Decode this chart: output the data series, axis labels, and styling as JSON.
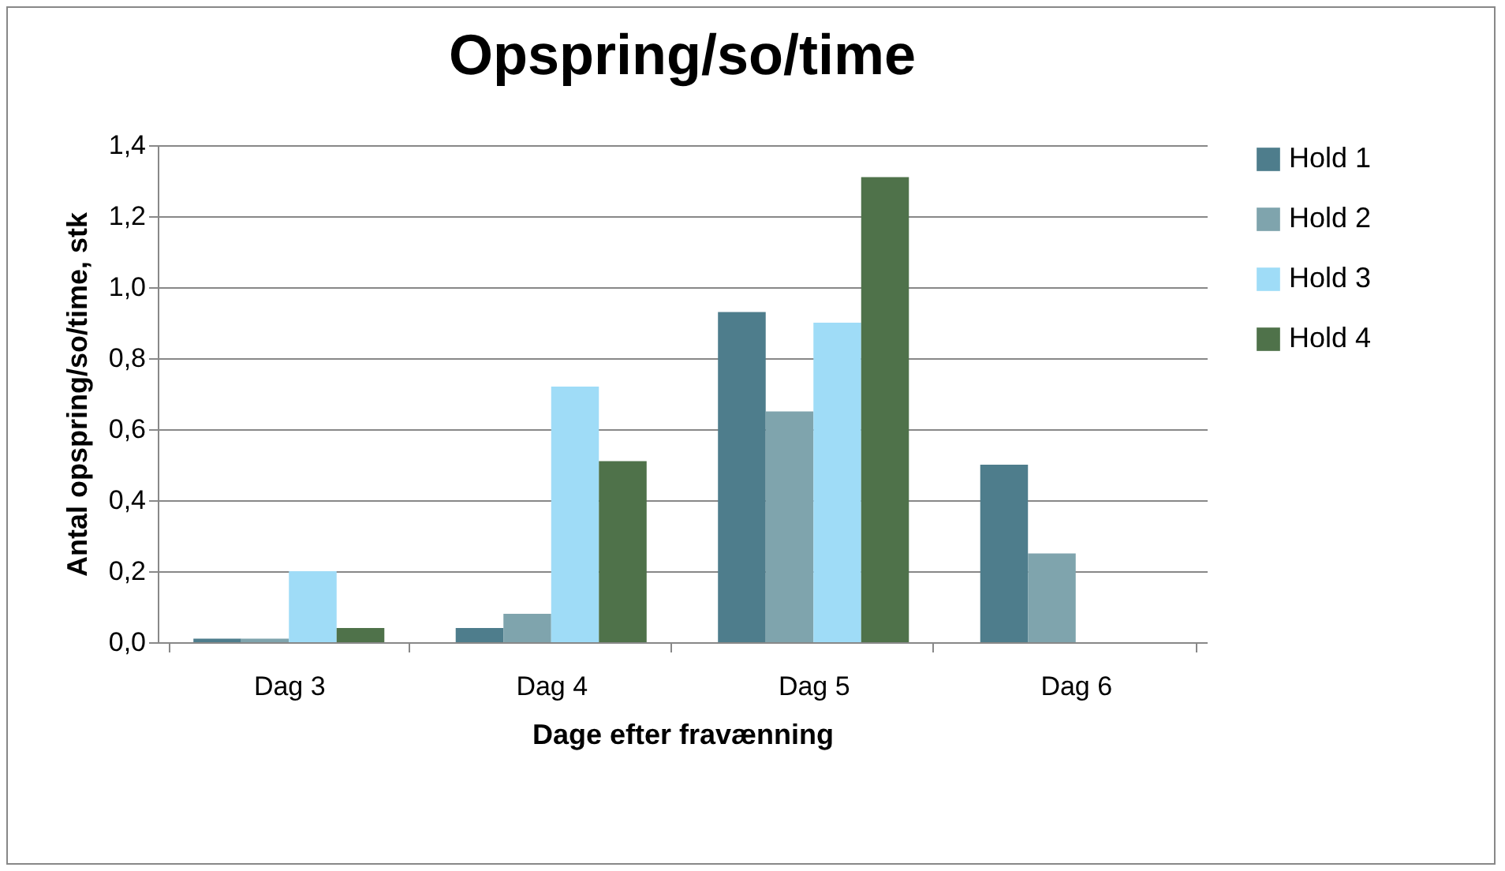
{
  "chart_data": {
    "type": "bar",
    "title": "Opspring/so/time",
    "xlabel": "Dage efter fravænning",
    "ylabel": "Antal opspring/so/time, stk",
    "categories": [
      "Dag 3",
      "Dag 4",
      "Dag 5",
      "Dag 6"
    ],
    "series": [
      {
        "name": "Hold 1",
        "color": "#4e7d8c",
        "values": [
          0.01,
          0.04,
          0.93,
          0.5
        ]
      },
      {
        "name": "Hold 2",
        "color": "#7fa4ad",
        "values": [
          0.01,
          0.08,
          0.65,
          0.25
        ]
      },
      {
        "name": "Hold 3",
        "color": "#9fdcf7",
        "values": [
          0.2,
          0.72,
          0.9,
          null
        ]
      },
      {
        "name": "Hold 4",
        "color": "#4f724a",
        "values": [
          0.04,
          0.51,
          1.31,
          null
        ]
      }
    ],
    "ylim": [
      0,
      1.4
    ],
    "yticks": [
      {
        "value": 0,
        "label": "0,0"
      },
      {
        "value": 0.2,
        "label": "0,2"
      },
      {
        "value": 0.4,
        "label": "0,4"
      },
      {
        "value": 0.6,
        "label": "0,6"
      },
      {
        "value": 0.8,
        "label": "0,8"
      },
      {
        "value": 1,
        "label": "1,0"
      },
      {
        "value": 1.2,
        "label": "1,2"
      },
      {
        "value": 1.4,
        "label": "1,4"
      }
    ],
    "grid": "y",
    "legend": "right"
  }
}
